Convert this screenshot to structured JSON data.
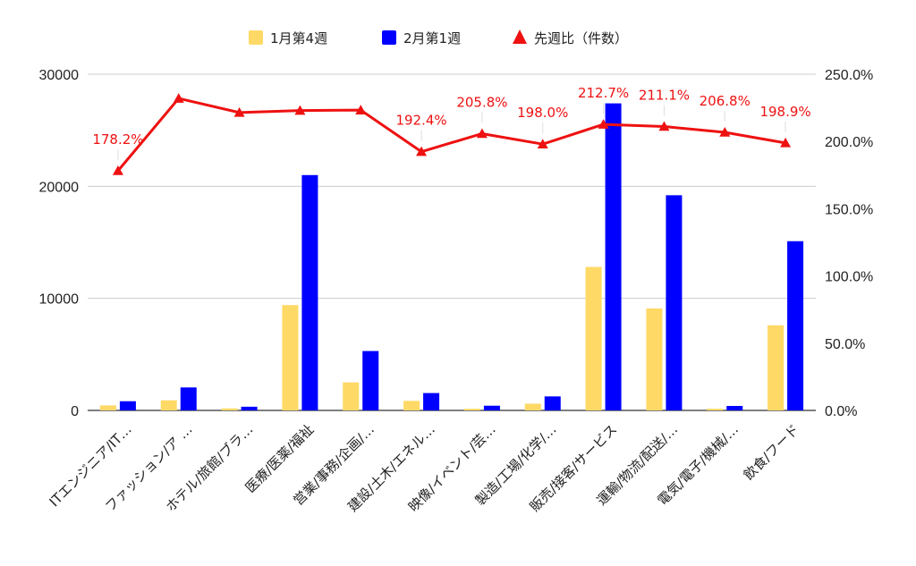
{
  "chart_data": {
    "type": "bar",
    "categories": [
      "ITエンジニア/IT…",
      "ファッション/ア …",
      "ホテル/旅館/ブラ…",
      "医療/医薬/福祉",
      "営業/事務/企画/…",
      "建設/土木/エネル…",
      "映像/イベント/芸…",
      "製造/工場/化学/…",
      "販売/接客/サービス",
      "運輸/物流/配送/…",
      "電気/電子/機械/…",
      "飲食/フード"
    ],
    "series": [
      {
        "name": "1月第4週",
        "type": "bar",
        "axis": "left",
        "color": "#ffd966",
        "values": [
          450,
          900,
          180,
          9400,
          2500,
          850,
          150,
          600,
          12800,
          9100,
          150,
          7600
        ]
      },
      {
        "name": "2月第1週",
        "type": "bar",
        "axis": "left",
        "color": "#0000ff",
        "values": [
          820,
          2050,
          330,
          21000,
          5300,
          1550,
          420,
          1250,
          27400,
          19200,
          400,
          15100
        ]
      },
      {
        "name": "先週比（件数）",
        "type": "line",
        "axis": "right",
        "color": "#ee1111",
        "marker": "triangle",
        "values": [
          178.2,
          232.0,
          221.5,
          223.0,
          223.3,
          192.4,
          205.8,
          198.0,
          212.7,
          211.1,
          206.8,
          198.9
        ]
      }
    ],
    "line_labels": [
      "178.2%",
      "",
      "",
      "",
      "",
      "192.4%",
      "205.8%",
      "198.0%",
      "212.7%",
      "211.1%",
      "206.8%",
      "198.9%"
    ],
    "left_axis": {
      "min": 0,
      "max": 30000,
      "ticks": [
        "0",
        "10000",
        "20000",
        "30000"
      ],
      "tick_values": [
        0,
        10000,
        20000,
        30000
      ]
    },
    "right_axis": {
      "min": 0,
      "max": 250,
      "ticks": [
        "0.0%",
        "50.0%",
        "100.0%",
        "150.0%",
        "200.0%",
        "250.0%"
      ],
      "tick_values": [
        0,
        50,
        100,
        150,
        200,
        250
      ]
    },
    "grid": true,
    "legend_position": "top",
    "title": "",
    "xlabel": "",
    "ylabel": ""
  }
}
